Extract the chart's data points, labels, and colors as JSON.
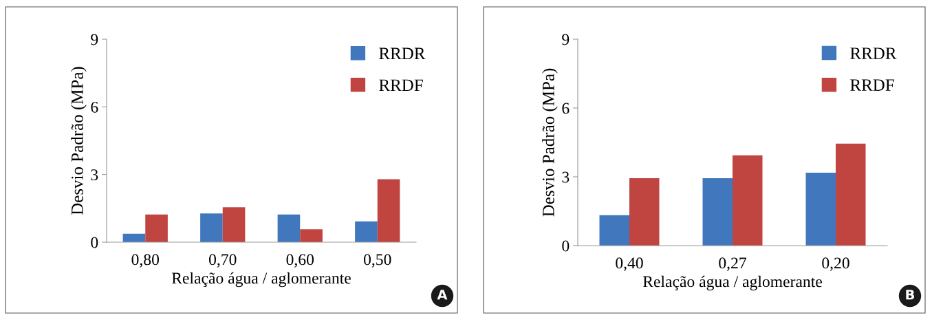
{
  "chart_data": [
    {
      "type": "bar",
      "xlabel": "Relação água / aglomerante",
      "ylabel": "Desvio Padrão (MPa)",
      "categories": [
        "0,80",
        "0,70",
        "0,60",
        "0,50"
      ],
      "series": [
        {
          "name": "RRDR",
          "color": "#4177bd",
          "values": [
            0.37,
            1.27,
            1.23,
            0.92
          ]
        },
        {
          "name": "RRDF",
          "color": "#c04541",
          "values": [
            1.23,
            1.55,
            0.57,
            2.79
          ]
        }
      ],
      "ylim": [
        0,
        9
      ],
      "yticks": [
        0,
        3,
        6,
        9
      ],
      "grid": false,
      "legend": "top right",
      "annotations": [
        "A"
      ]
    },
    {
      "type": "bar",
      "xlabel": "Relação água / aglomerante",
      "ylabel": "Desvio Padrão (MPa)",
      "categories": [
        "0,40",
        "0,27",
        "0,20"
      ],
      "series": [
        {
          "name": "RRDR",
          "color": "#4177bd",
          "values": [
            1.33,
            2.94,
            3.18
          ]
        },
        {
          "name": "RRDF",
          "color": "#c04541",
          "values": [
            2.94,
            3.94,
            4.45
          ]
        }
      ],
      "ylim": [
        0,
        9
      ],
      "yticks": [
        0,
        3,
        6,
        9
      ],
      "grid": false,
      "legend": "top right",
      "annotations": [
        "B"
      ]
    }
  ]
}
